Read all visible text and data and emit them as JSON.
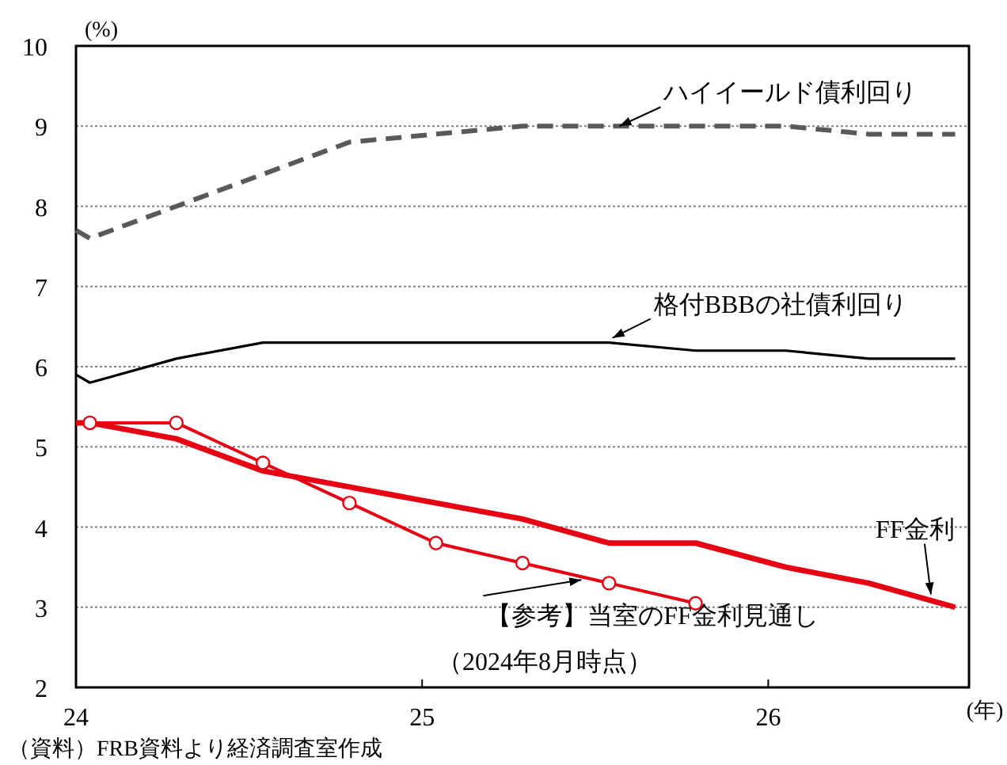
{
  "chart_data": {
    "type": "line",
    "ylabel": "(%)",
    "xlabel": "(年)",
    "xlim": [
      24,
      26.58
    ],
    "xticks": [
      24,
      25,
      26
    ],
    "ylim": [
      2,
      10
    ],
    "yticks": [
      2,
      3,
      4,
      5,
      6,
      7,
      8,
      9,
      10
    ],
    "grid": "y",
    "series": [
      {
        "color": "#595959",
        "line_style": "dashed",
        "x": [
          24,
          24.04,
          24.29,
          24.54,
          24.79,
          25.04,
          25.29,
          25.54,
          25.79,
          26.05,
          26.29,
          26.54
        ],
        "values": [
          7.7,
          7.6,
          8.0,
          8.4,
          8.8,
          8.9,
          9.0,
          9.0,
          9.0,
          9.0,
          8.9,
          8.9
        ]
      },
      {
        "color": "#000000",
        "x": [
          24,
          24.04,
          24.29,
          24.54,
          24.79,
          25.04,
          25.29,
          25.54,
          25.79,
          26.05,
          26.29,
          26.54
        ],
        "values": [
          5.9,
          5.8,
          6.1,
          6.3,
          6.3,
          6.3,
          6.3,
          6.3,
          6.2,
          6.2,
          6.1,
          6.1
        ]
      },
      {
        "color": "#e60012",
        "x": [
          24,
          24.04,
          24.29,
          24.54,
          24.79,
          25.04,
          25.29,
          25.54,
          25.79,
          26.05,
          26.29,
          26.54
        ],
        "values": [
          5.3,
          5.3,
          5.1,
          4.7,
          4.5,
          4.3,
          4.1,
          3.8,
          3.8,
          3.5,
          3.3,
          3.0
        ]
      },
      {
        "color": "#e60012",
        "marker": "circle",
        "x": [
          24.04,
          24.29,
          24.54,
          24.79,
          25.04,
          25.29,
          25.54,
          25.79
        ],
        "values": [
          5.3,
          5.3,
          4.8,
          4.3,
          3.8,
          3.55,
          3.3,
          3.05
        ]
      }
    ],
    "annotations": [
      {
        "text": "ハイイールド債利回り",
        "x": 25.57,
        "y": 9.0
      },
      {
        "text": "格付BBBの社債利回り",
        "x": 25.55,
        "y": 6.3
      },
      {
        "text": "FF金利",
        "x": 26.47,
        "y": 3.1
      },
      {
        "text": "【参考】当室のFF金利見通し",
        "x": 25.46,
        "y": 3.4
      },
      "（2024年8月時点）",
      "（資料）FRB資料より経済調査室作成"
    ]
  }
}
